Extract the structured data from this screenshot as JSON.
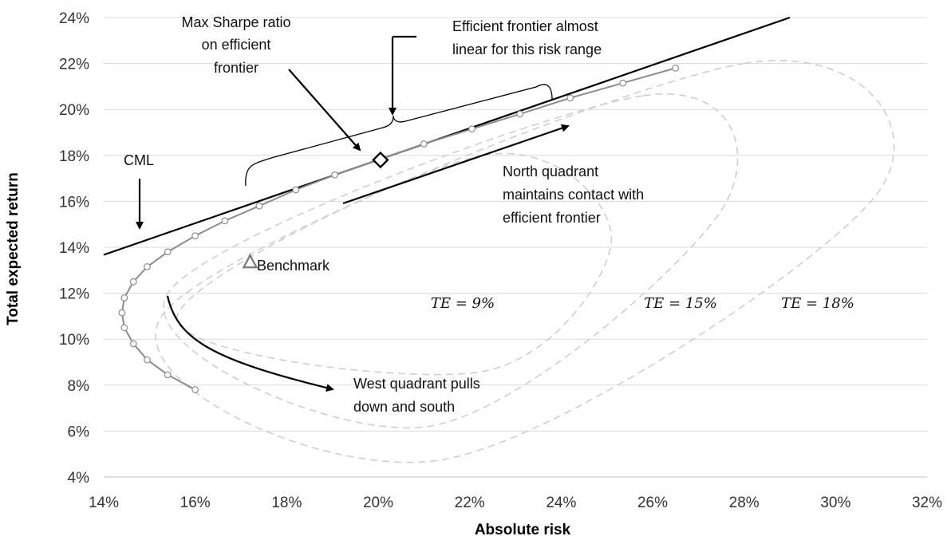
{
  "chart_data": {
    "type": "scatter",
    "title": "",
    "xlabel": "Absolute risk",
    "ylabel": "Total expected return",
    "xlim": [
      14,
      32
    ],
    "ylim": [
      4,
      24
    ],
    "x_ticks": [
      "14%",
      "16%",
      "18%",
      "20%",
      "22%",
      "24%",
      "26%",
      "28%",
      "30%",
      "32%"
    ],
    "y_ticks": [
      "4%",
      "6%",
      "8%",
      "10%",
      "12%",
      "14%",
      "16%",
      "18%",
      "20%",
      "22%",
      "24%"
    ],
    "grid": "horizontal",
    "legend": "none",
    "series": [
      {
        "name": "",
        "kind": "efficient-frontier",
        "style": "line-with-markers",
        "points": [
          [
            16.0,
            7.8
          ],
          [
            15.4,
            8.45
          ],
          [
            14.95,
            9.1
          ],
          [
            14.65,
            9.8
          ],
          [
            14.45,
            10.5
          ],
          [
            14.4,
            11.15
          ],
          [
            14.45,
            11.8
          ],
          [
            14.65,
            12.5
          ],
          [
            14.95,
            13.15
          ],
          [
            15.4,
            13.8
          ],
          [
            16.0,
            14.5
          ],
          [
            16.65,
            15.15
          ],
          [
            17.4,
            15.8
          ],
          [
            18.2,
            16.5
          ],
          [
            19.05,
            17.15
          ],
          [
            20.0,
            17.8
          ],
          [
            21.0,
            18.5
          ],
          [
            22.05,
            19.15
          ],
          [
            23.1,
            19.8
          ],
          [
            24.2,
            20.5
          ],
          [
            25.35,
            21.15
          ],
          [
            26.5,
            21.8
          ]
        ]
      },
      {
        "name": "CML",
        "kind": "capital-market-line",
        "style": "line",
        "points": [
          [
            14.0,
            13.67
          ],
          [
            29.0,
            24.0
          ]
        ]
      },
      {
        "name": "Benchmark",
        "kind": "point",
        "marker": "triangle",
        "points": [
          [
            17.2,
            13.3
          ]
        ]
      },
      {
        "name": "Max Sharpe",
        "kind": "point",
        "marker": "diamond",
        "points": [
          [
            20.05,
            17.8
          ]
        ]
      }
    ],
    "tracking_error_ellipses": [
      {
        "label": "TE = 9%",
        "top": [
          22.3,
          18.0
        ],
        "bottom": [
          22.3,
          8.6
        ],
        "left": [
          15.6,
          10.9
        ],
        "right": [
          25.1,
          14.4
        ]
      },
      {
        "label": "TE = 15%",
        "top": [
          25.8,
          20.6
        ],
        "bottom": [
          21.1,
          6.2
        ],
        "left": [
          15.4,
          12.0
        ],
        "right": [
          27.5,
          15.6
        ]
      },
      {
        "label": "TE = 18%",
        "top": [
          28.0,
          22.0
        ],
        "bottom": [
          21.4,
          4.75
        ],
        "left": [
          15.3,
          11.1
        ],
        "right": [
          30.9,
          16.3
        ]
      }
    ],
    "annotations": [
      {
        "id": "max-sharpe",
        "lines": [
          "Max Sharpe ratio",
          "on efficient",
          "frontier"
        ]
      },
      {
        "id": "efficient-linear",
        "lines": [
          "Efficient frontier almost",
          "linear for this risk range"
        ]
      },
      {
        "id": "cml",
        "lines": [
          "CML"
        ]
      },
      {
        "id": "north",
        "lines": [
          "North quadrant",
          "maintains contact with",
          "efficient frontier"
        ]
      },
      {
        "id": "west",
        "lines": [
          "West quadrant pulls",
          "down and south"
        ]
      },
      {
        "id": "benchmark",
        "lines": [
          "Benchmark"
        ]
      }
    ],
    "colors": {
      "frontier": "#8c8c8c",
      "ellipse": "#cfcfcf",
      "gridline": "#d9d9d9",
      "cml": "#000000"
    }
  }
}
